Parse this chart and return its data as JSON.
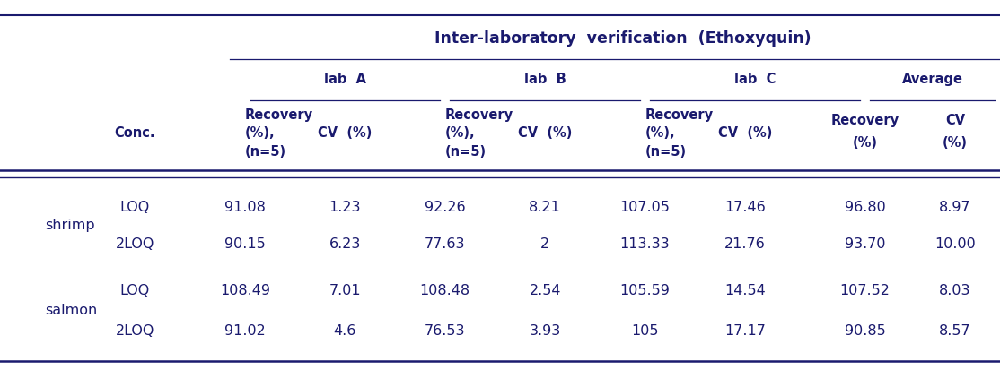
{
  "title": "Inter-laboratory  verification  (Ethoxyquin)",
  "col_groups": [
    "lab  A",
    "lab  B",
    "lab  C",
    "Average"
  ],
  "row_groups": [
    "shrimp",
    "salmon"
  ],
  "row_sub": [
    "LOQ",
    "2LOQ",
    "LOQ",
    "2LOQ"
  ],
  "data_str": [
    [
      "91.08",
      "1.23",
      "92.26",
      "8.21",
      "107.05",
      "17.46",
      "96.80",
      "8.97"
    ],
    [
      "90.15",
      "6.23",
      "77.63",
      "2",
      "113.33",
      "21.76",
      "93.70",
      "10.00"
    ],
    [
      "108.49",
      "7.01",
      "108.48",
      "2.54",
      "105.59",
      "14.54",
      "107.52",
      "8.03"
    ],
    [
      "91.02",
      "4.6",
      "76.53",
      "3.93",
      "105",
      "17.17",
      "90.85",
      "8.57"
    ]
  ],
  "background_color": "#ffffff",
  "font_color": "#1a1a6e",
  "font_size_title": 12.5,
  "font_size_header": 10.5,
  "font_size_data": 11.5
}
